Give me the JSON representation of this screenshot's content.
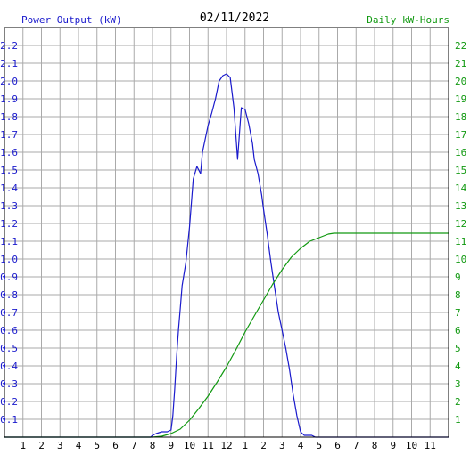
{
  "chart_data": {
    "type": "line",
    "title": "02/11/2022",
    "ylabel_left": "Power Output (kW)",
    "ylabel_right": "Daily kW-Hours",
    "x_ticks": [
      "1",
      "2",
      "3",
      "4",
      "5",
      "6",
      "7",
      "8",
      "9",
      "10",
      "11",
      "12",
      "1",
      "2",
      "3",
      "4",
      "5",
      "6",
      "7",
      "8",
      "9",
      "10",
      "11"
    ],
    "x_range_hours": [
      0,
      24
    ],
    "y_left_range": [
      0,
      2.3
    ],
    "y_left_ticks": [
      "0.1",
      "0.2",
      "0.3",
      "0.4",
      "0.5",
      "0.6",
      "0.7",
      "0.8",
      "0.9",
      "1.0",
      "1.1",
      "1.2",
      "1.3",
      "1.4",
      "1.5",
      "1.6",
      "1.7",
      "1.8",
      "1.9",
      "2.0",
      "2.1",
      "2.2"
    ],
    "y_right_range": [
      0,
      23
    ],
    "y_right_ticks": [
      "1",
      "2",
      "3",
      "4",
      "5",
      "6",
      "7",
      "8",
      "9",
      "10",
      "11",
      "12",
      "13",
      "14",
      "15",
      "16",
      "17",
      "18",
      "19",
      "20",
      "21",
      "22"
    ],
    "grid": true,
    "colors": {
      "power": "#1a1acc",
      "energy": "#119911",
      "grid": "#aaaaaa",
      "frame": "#000000"
    },
    "series": [
      {
        "name": "Power Output (kW)",
        "axis": "left",
        "x": [
          0,
          7.9,
          8.0,
          8.2,
          8.5,
          8.8,
          9.0,
          9.1,
          9.2,
          9.3,
          9.4,
          9.5,
          9.6,
          9.8,
          10.0,
          10.2,
          10.4,
          10.6,
          10.7,
          10.9,
          11.0,
          11.2,
          11.4,
          11.6,
          11.8,
          12.0,
          12.2,
          12.4,
          12.6,
          12.8,
          13.0,
          13.2,
          13.4,
          13.5,
          13.7,
          13.9,
          14.0,
          14.2,
          14.4,
          14.6,
          14.8,
          15.0,
          15.2,
          15.4,
          15.6,
          15.8,
          16.0,
          16.2,
          16.4,
          16.6,
          16.8,
          17.0,
          17.2,
          17.4,
          17.6,
          17.8,
          17.9,
          18.0,
          18.5,
          19.0,
          24
        ],
        "y": [
          0,
          0,
          0.01,
          0.02,
          0.03,
          0.03,
          0.04,
          0.12,
          0.27,
          0.45,
          0.6,
          0.72,
          0.85,
          0.98,
          1.18,
          1.45,
          1.52,
          1.48,
          1.6,
          1.7,
          1.75,
          1.82,
          1.9,
          2.0,
          2.03,
          2.04,
          2.02,
          1.85,
          1.56,
          1.85,
          1.84,
          1.76,
          1.65,
          1.56,
          1.48,
          1.36,
          1.28,
          1.14,
          0.98,
          0.84,
          0.7,
          0.6,
          0.5,
          0.38,
          0.24,
          0.12,
          0.03,
          0.01,
          0.01,
          0.01,
          0.0,
          0,
          0,
          0,
          0,
          0,
          0,
          0,
          0,
          0,
          0
        ]
      },
      {
        "name": "Daily kW-Hours",
        "axis": "right",
        "x": [
          0,
          8.0,
          8.5,
          9.0,
          9.5,
          10.0,
          10.5,
          11.0,
          11.5,
          12.0,
          12.5,
          13.0,
          13.5,
          14.0,
          14.5,
          15.0,
          15.5,
          16.0,
          16.5,
          17.0,
          17.5,
          17.8,
          18.0,
          24
        ],
        "y": [
          0,
          0,
          0.05,
          0.2,
          0.45,
          0.95,
          1.6,
          2.3,
          3.1,
          3.95,
          4.9,
          5.9,
          6.8,
          7.7,
          8.6,
          9.4,
          10.1,
          10.6,
          11.0,
          11.2,
          11.4,
          11.45,
          11.45,
          11.45
        ]
      }
    ]
  }
}
